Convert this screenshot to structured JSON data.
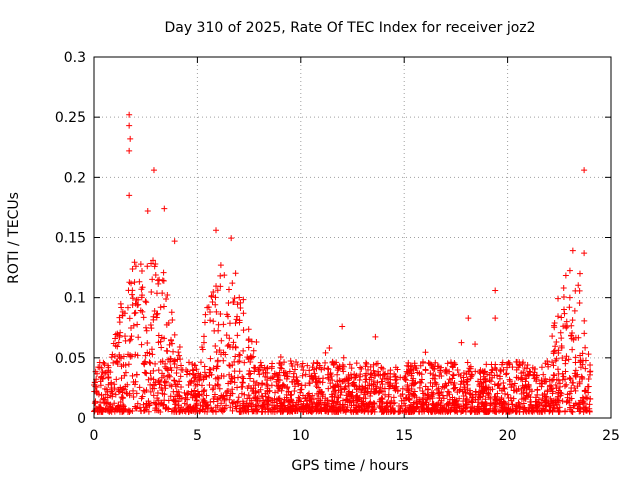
{
  "chart_data": {
    "type": "scatter",
    "title": "Day 310 of 2025, Rate Of TEC Index for receiver joz2",
    "xlabel": "GPS time / hours",
    "ylabel": "ROTI / TECUs",
    "xlim": [
      0,
      25
    ],
    "ylim": [
      0,
      0.3
    ],
    "xticks": [
      0,
      5,
      10,
      15,
      20,
      25
    ],
    "xtick_labels": [
      "0",
      "5",
      "10",
      "15",
      "20",
      "25"
    ],
    "yticks": [
      0,
      0.05,
      0.1,
      0.15,
      0.2,
      0.25,
      0.3
    ],
    "ytick_labels": [
      "0",
      "0.05",
      "0.1",
      "0.15",
      "0.2",
      "0.25",
      "0.3"
    ],
    "grid": true,
    "marker": "plus",
    "color": "#ff0000",
    "series": [
      {
        "name": "ROTI",
        "notable_points": [
          {
            "x": 1.7,
            "y": 0.252
          },
          {
            "x": 1.7,
            "y": 0.243
          },
          {
            "x": 1.75,
            "y": 0.232
          },
          {
            "x": 1.7,
            "y": 0.222
          },
          {
            "x": 2.9,
            "y": 0.206
          },
          {
            "x": 23.7,
            "y": 0.206
          },
          {
            "x": 1.7,
            "y": 0.185
          },
          {
            "x": 3.4,
            "y": 0.174
          },
          {
            "x": 2.6,
            "y": 0.172
          },
          {
            "x": 5.9,
            "y": 0.156
          },
          {
            "x": 3.9,
            "y": 0.147
          },
          {
            "x": 23.7,
            "y": 0.137
          },
          {
            "x": 23.5,
            "y": 0.12
          },
          {
            "x": 19.4,
            "y": 0.106
          },
          {
            "x": 19.4,
            "y": 0.083
          },
          {
            "x": 18.1,
            "y": 0.083
          },
          {
            "x": 12.0,
            "y": 0.076
          }
        ],
        "bulk": {
          "x_range": [
            0,
            24
          ],
          "typical_range": [
            0.005,
            0.05
          ],
          "elevated_periods": [
            {
              "x_range": [
                0.8,
                4.2
              ],
              "peak": 0.14
            },
            {
              "x_range": [
                5.0,
                7.8
              ],
              "peak": 0.13
            },
            {
              "x_range": [
                22.0,
                24.0
              ],
              "peak": 0.12
            }
          ]
        }
      }
    ]
  }
}
